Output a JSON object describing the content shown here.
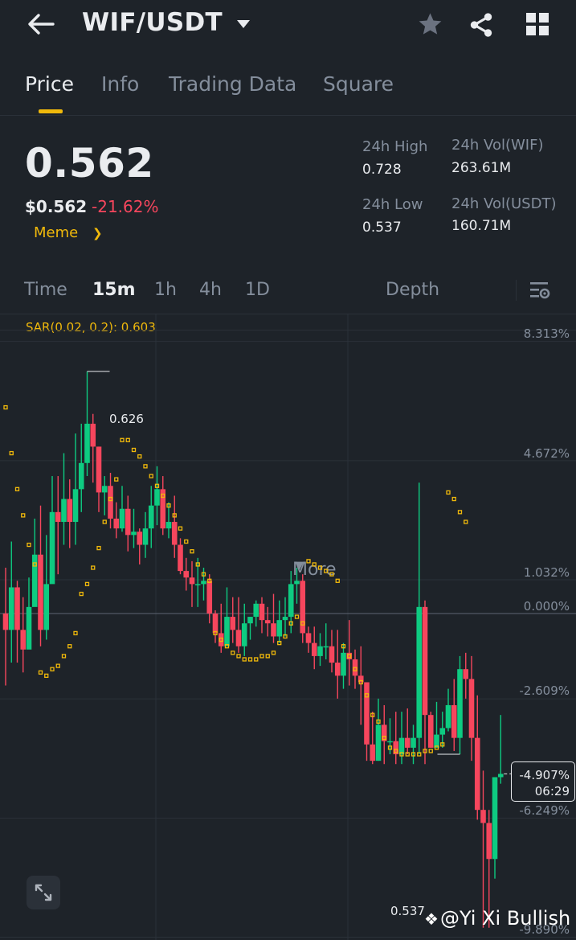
{
  "header": {
    "title": "WIF/USDT"
  },
  "tabs": [
    {
      "label": "Price",
      "active": true
    },
    {
      "label": "Info"
    },
    {
      "label": "Trading Data"
    },
    {
      "label": "Square"
    }
  ],
  "price": {
    "last": "0.562",
    "usd": "$0.562",
    "change": "-21.62%",
    "tag": "Meme"
  },
  "stats": {
    "high_label": "24h High",
    "high_value": "0.728",
    "low_label": "24h Low",
    "low_value": "0.537",
    "vol_base_label": "24h Vol(WIF)",
    "vol_base_value": "263.61M",
    "vol_quote_label": "24h Vol(USDT)",
    "vol_quote_value": "160.71M"
  },
  "intervals": {
    "items": [
      "Time",
      "15m",
      "1h",
      "4h",
      "1D"
    ],
    "selected": "15m",
    "more_label": "More",
    "depth_label": "Depth"
  },
  "indicator": {
    "label": "SAR(0.02, 0.2): 0.603"
  },
  "chart_data": {
    "type": "candlestick",
    "y_axis_labels": [
      "8.313%",
      "4.672%",
      "1.032%",
      "0.000%",
      "-2.609%",
      "-6.249%",
      "-9.890%"
    ],
    "y_axis_values": [
      8.313,
      4.672,
      1.032,
      0.0,
      -2.609,
      -6.249,
      -9.89
    ],
    "high_marker": "0.626",
    "low_marker": "0.537",
    "current_change": "-4.907%",
    "countdown": "06:29",
    "candles_pct": [
      [
        0.0,
        -0.5,
        1.4,
        -2.2
      ],
      [
        -0.5,
        0.8,
        2.2,
        -1.5
      ],
      [
        0.8,
        -0.5,
        1.0,
        -1.5
      ],
      [
        -0.5,
        -1.1,
        0.5,
        -1.8
      ],
      [
        -1.1,
        0.2,
        1.1,
        -0.4
      ],
      [
        0.2,
        1.8,
        2.9,
        0.7
      ],
      [
        1.8,
        -0.5,
        3.3,
        -1.0
      ],
      [
        -0.5,
        0.9,
        2.4,
        -0.8
      ],
      [
        0.9,
        3.1,
        4.2,
        1.6
      ],
      [
        3.1,
        2.8,
        4.2,
        1.2
      ],
      [
        2.8,
        3.5,
        4.9,
        2.1
      ],
      [
        3.5,
        2.8,
        4.1,
        2.0
      ],
      [
        2.8,
        3.8,
        5.5,
        2.1
      ],
      [
        3.8,
        4.6,
        5.8,
        3.1
      ],
      [
        4.6,
        5.8,
        7.4,
        4.2
      ],
      [
        5.8,
        5.1,
        6.1,
        4.0
      ],
      [
        5.1,
        3.7,
        5.1,
        3.1
      ],
      [
        3.7,
        3.9,
        4.2,
        3.0
      ],
      [
        3.9,
        2.9,
        4.3,
        2.6
      ],
      [
        2.9,
        2.6,
        3.4,
        2.3
      ],
      [
        2.6,
        3.2,
        3.9,
        2.5
      ],
      [
        3.2,
        2.4,
        3.6,
        1.9
      ],
      [
        2.4,
        2.5,
        3.2,
        2.0
      ],
      [
        2.5,
        2.1,
        2.6,
        1.5
      ],
      [
        2.1,
        2.6,
        3.1,
        1.7
      ],
      [
        2.6,
        3.3,
        3.9,
        2.0
      ],
      [
        3.3,
        3.8,
        4.5,
        2.7
      ],
      [
        3.8,
        2.6,
        4.2,
        2.4
      ],
      [
        2.6,
        2.8,
        3.4,
        2.3
      ],
      [
        2.8,
        2.1,
        3.6,
        1.7
      ],
      [
        2.1,
        1.3,
        2.3,
        1.2
      ],
      [
        1.3,
        1.1,
        1.7,
        0.7
      ],
      [
        1.1,
        0.9,
        1.6,
        0.2
      ],
      [
        0.9,
        0.9,
        1.7,
        0.2
      ],
      [
        0.9,
        1.0,
        1.4,
        0.4
      ],
      [
        1.0,
        0.0,
        1.2,
        -0.3
      ],
      [
        0.0,
        -0.6,
        0.1,
        -0.9
      ],
      [
        -0.6,
        -1.0,
        0.3,
        -1.2
      ],
      [
        -1.0,
        -0.1,
        0.8,
        -0.9
      ],
      [
        -0.1,
        -0.5,
        0.5,
        -0.9
      ],
      [
        -0.5,
        -1.0,
        0.5,
        -1.2
      ],
      [
        -1.0,
        -0.3,
        0.3,
        -1.3
      ],
      [
        -0.3,
        -0.1,
        -0.1,
        -0.8
      ],
      [
        -0.1,
        0.3,
        0.4,
        -0.4
      ],
      [
        0.3,
        -0.2,
        0.5,
        -0.6
      ],
      [
        -0.2,
        -0.3,
        0.2,
        -0.7
      ],
      [
        -0.3,
        -0.7,
        0.6,
        -0.9
      ],
      [
        -0.7,
        -0.2,
        0.4,
        -0.9
      ],
      [
        -0.2,
        -0.1,
        0.5,
        -0.7
      ],
      [
        -0.1,
        0.9,
        1.3,
        -0.6
      ],
      [
        0.9,
        1.0,
        1.4,
        0.3
      ],
      [
        1.0,
        -0.6,
        1.2,
        -0.9
      ],
      [
        -0.6,
        -0.9,
        -0.4,
        -1.2
      ],
      [
        -0.9,
        -1.3,
        -0.4,
        -1.7
      ],
      [
        -1.3,
        -1.0,
        -0.6,
        -1.6
      ],
      [
        -1.0,
        -1.0,
        -0.3,
        -1.4
      ],
      [
        -1.0,
        -1.5,
        -0.5,
        -1.8
      ],
      [
        -1.5,
        -1.9,
        -0.5,
        -2.6
      ],
      [
        -1.9,
        -1.2,
        -0.9,
        -2.3
      ],
      [
        -1.2,
        -1.4,
        -0.2,
        -2.2
      ],
      [
        -1.4,
        -1.9,
        -1.1,
        -2.3
      ],
      [
        -1.9,
        -2.1,
        -1.0,
        -3.4
      ],
      [
        -2.1,
        -4.0,
        -2.1,
        -4.5
      ],
      [
        -4.0,
        -4.5,
        -3.0,
        -4.6
      ],
      [
        -4.5,
        -3.4,
        -2.6,
        -4.5
      ],
      [
        -3.4,
        -3.9,
        -2.8,
        -4.6
      ],
      [
        -3.9,
        -3.9,
        -3.2,
        -4.3
      ],
      [
        -3.9,
        -4.3,
        -3.0,
        -4.6
      ],
      [
        -4.3,
        -3.8,
        -3.0,
        -4.6
      ],
      [
        -3.8,
        -4.1,
        -2.9,
        -4.3
      ],
      [
        -4.1,
        -3.8,
        -3.4,
        -4.6
      ],
      [
        -3.8,
        0.2,
        4.0,
        -4.3
      ],
      [
        0.2,
        -3.1,
        0.4,
        -4.6
      ],
      [
        -3.1,
        -4.1,
        -3.0,
        -4.1
      ],
      [
        -4.1,
        -3.7,
        -2.7,
        -4.1
      ],
      [
        -3.7,
        -3.5,
        -3.0,
        -4.1
      ],
      [
        -3.5,
        -2.8,
        -2.3,
        -3.6
      ],
      [
        -2.8,
        -3.8,
        -2.0,
        -4.2
      ],
      [
        -3.8,
        -1.7,
        -1.3,
        -4.3
      ],
      [
        -1.7,
        -2.0,
        -1.2,
        -2.6
      ],
      [
        -2.0,
        -3.8,
        -1.3,
        -4.5
      ],
      [
        -3.8,
        -6.0,
        -2.5,
        -6.3
      ],
      [
        -6.0,
        -6.4,
        -4.8,
        -9.6
      ],
      [
        -6.4,
        -7.5,
        -6.0,
        -9.6
      ],
      [
        -7.5,
        -5.0,
        -5.0,
        -8.1
      ],
      [
        -5.0,
        -4.9,
        -3.1,
        -5.2
      ]
    ],
    "sar_pct": [
      [
        0,
        6.3
      ],
      [
        1,
        4.9
      ],
      [
        2,
        3.8
      ],
      [
        3,
        3.0
      ],
      [
        4,
        2.1
      ],
      [
        5,
        1.5
      ],
      [
        6,
        -1.8
      ],
      [
        7,
        -1.9
      ],
      [
        8,
        -1.7
      ],
      [
        9,
        -1.6
      ],
      [
        10,
        -1.3
      ],
      [
        11,
        -1.0
      ],
      [
        12,
        -0.6
      ],
      [
        13,
        0.6
      ],
      [
        14,
        0.9
      ],
      [
        15,
        1.4
      ],
      [
        16,
        2.0
      ],
      [
        17,
        2.8
      ],
      [
        18,
        3.5
      ],
      [
        19,
        4.1
      ],
      [
        20,
        5.3
      ],
      [
        21,
        5.3
      ],
      [
        22,
        5.0
      ],
      [
        23,
        4.8
      ],
      [
        24,
        4.5
      ],
      [
        25,
        4.2
      ],
      [
        26,
        3.9
      ],
      [
        27,
        3.6
      ],
      [
        28,
        3.3
      ],
      [
        29,
        3.0
      ],
      [
        30,
        2.6
      ],
      [
        31,
        2.2
      ],
      [
        32,
        1.9
      ],
      [
        33,
        1.5
      ],
      [
        34,
        1.2
      ],
      [
        35,
        1.0
      ],
      [
        36,
        -0.6
      ],
      [
        37,
        -0.8
      ],
      [
        38,
        -1.0
      ],
      [
        39,
        -1.2
      ],
      [
        40,
        -1.3
      ],
      [
        41,
        -1.4
      ],
      [
        42,
        -1.4
      ],
      [
        43,
        -1.4
      ],
      [
        44,
        -1.3
      ],
      [
        45,
        -1.3
      ],
      [
        46,
        -1.2
      ],
      [
        47,
        -0.9
      ],
      [
        48,
        -0.7
      ],
      [
        49,
        -0.3
      ],
      [
        50,
        -0.1
      ],
      [
        51,
        -0.3
      ],
      [
        52,
        1.6
      ],
      [
        53,
        1.5
      ],
      [
        54,
        1.4
      ],
      [
        55,
        1.3
      ],
      [
        56,
        1.2
      ],
      [
        57,
        1.0
      ],
      [
        58,
        -1.0
      ],
      [
        59,
        -1.3
      ],
      [
        60,
        -1.7
      ],
      [
        61,
        -2.1
      ],
      [
        62,
        -2.5
      ],
      [
        63,
        -3.1
      ],
      [
        64,
        -3.3
      ],
      [
        65,
        -3.8
      ],
      [
        66,
        -4.1
      ],
      [
        67,
        -4.2
      ],
      [
        68,
        -4.3
      ],
      [
        69,
        -4.3
      ],
      [
        70,
        -4.3
      ],
      [
        71,
        -4.3
      ],
      [
        72,
        -4.2
      ],
      [
        73,
        -4.2
      ],
      [
        74,
        -4.1
      ],
      [
        75,
        -4.0
      ],
      [
        76,
        3.7
      ],
      [
        77,
        3.5
      ],
      [
        78,
        3.1
      ],
      [
        79,
        2.8
      ]
    ]
  },
  "watermark": {
    "text": "@Yi Xi Bullish"
  },
  "colors": {
    "up": "#0ecb81",
    "down": "#f6465d",
    "accent": "#f0b90b",
    "background": "#1e2329"
  }
}
